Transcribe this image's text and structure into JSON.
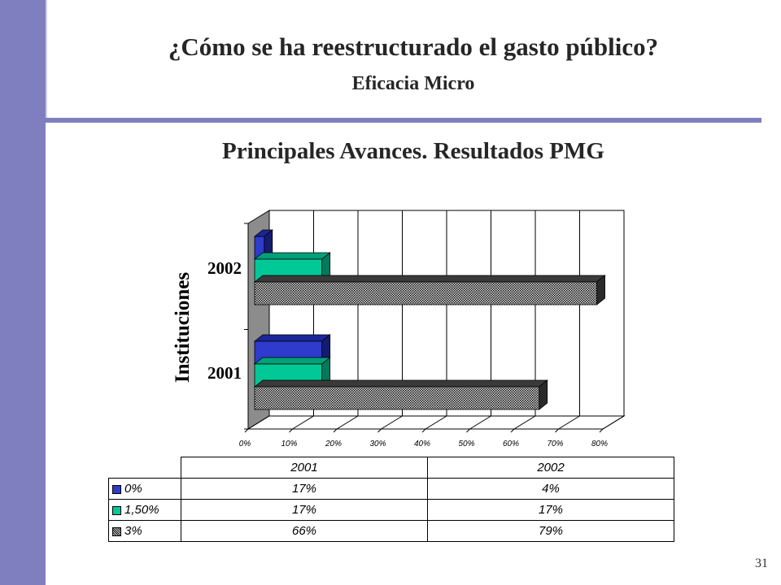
{
  "slide": {
    "title": "¿Cómo se ha reestructurado el gasto público?",
    "subtitle": "Eficacia Micro",
    "chart_heading": "Principales Avances. Resultados PMG",
    "page_number": "31"
  },
  "colors": {
    "band": "#7f7fbf",
    "series_0": "#2e3bcc",
    "series_1": "#00c896",
    "series_2": "#606060"
  },
  "chart_data": {
    "type": "bar",
    "orientation": "horizontal",
    "style": "3d",
    "ylabel": "Instituciones",
    "categories": [
      "2001",
      "2002"
    ],
    "xlim": [
      0,
      80
    ],
    "x_ticks": [
      "0%",
      "10%",
      "20%",
      "30%",
      "40%",
      "50%",
      "60%",
      "70%",
      "80%"
    ],
    "grid": "vertical",
    "series": [
      {
        "name": "0%",
        "values": [
          17,
          4
        ],
        "labels": [
          "17%",
          "4%"
        ]
      },
      {
        "name": "1,50%",
        "values": [
          17,
          17
        ],
        "labels": [
          "17%",
          "17%"
        ]
      },
      {
        "name": "3%",
        "values": [
          66,
          79
        ],
        "labels": [
          "66%",
          "79%"
        ]
      }
    ]
  }
}
